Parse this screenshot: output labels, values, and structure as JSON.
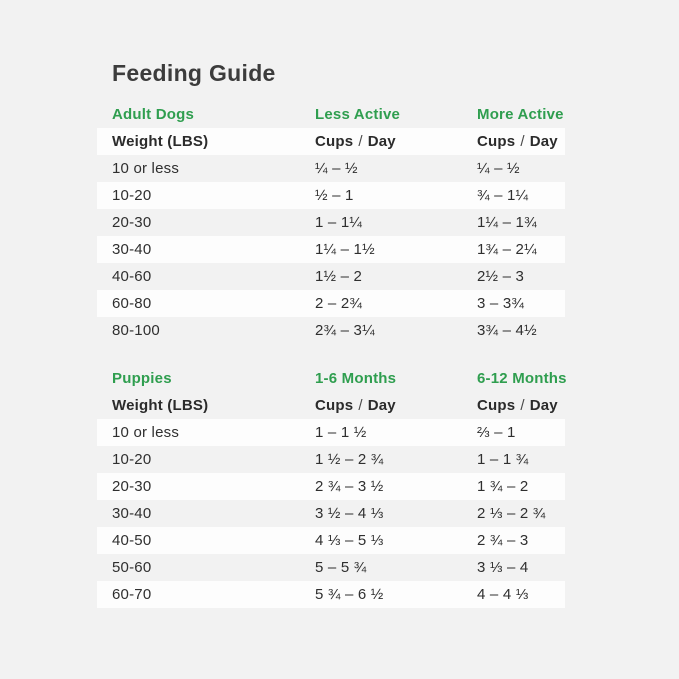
{
  "page": {
    "title": "Feeding Guide"
  },
  "colors": {
    "accent_green": "#2f9e4f",
    "page_bg": "#f2f2f2",
    "row_white": "#fdfdfd",
    "text_dark": "#2f2f2f",
    "title_dark": "#3c3c3c"
  },
  "tables": [
    {
      "section_label": "Adult Dogs",
      "col_labels": [
        "Less Active",
        "More Active"
      ],
      "header": {
        "weight": "Weight (LBS)",
        "cups": "Cups",
        "slash": "/",
        "day": "Day"
      },
      "header_white": true,
      "rows": [
        {
          "weight": "10 or less",
          "cups": [
            "¼ – ½",
            "¼ – ½"
          ],
          "white": false
        },
        {
          "weight": "10-20",
          "cups": [
            "½ – 1",
            "¾ – 1¼"
          ],
          "white": true
        },
        {
          "weight": "20-30",
          "cups": [
            "1 – 1¼",
            "1¼ – 1¾"
          ],
          "white": false
        },
        {
          "weight": "30-40",
          "cups": [
            "1¼ – 1½",
            "1¾ – 2¼"
          ],
          "white": true
        },
        {
          "weight": "40-60",
          "cups": [
            "1½ – 2",
            "2½ – 3"
          ],
          "white": false
        },
        {
          "weight": "60-80",
          "cups": [
            "2 – 2¾",
            "3 – 3¾"
          ],
          "white": true
        },
        {
          "weight": "80-100",
          "cups": [
            "2¾ – 3¼",
            "3¾ – 4½"
          ],
          "white": false
        }
      ]
    },
    {
      "section_label": "Puppies",
      "col_labels": [
        "1-6 Months",
        "6-12 Months"
      ],
      "header": {
        "weight": "Weight (LBS)",
        "cups": "Cups",
        "slash": "/",
        "day": "Day"
      },
      "header_white": false,
      "rows": [
        {
          "weight": "10 or less",
          "cups": [
            "1 – 1 ½",
            "⅔ – 1"
          ],
          "white": true
        },
        {
          "weight": "10-20",
          "cups": [
            "1 ½ – 2 ¾",
            "1 – 1 ¾"
          ],
          "white": false
        },
        {
          "weight": "20-30",
          "cups": [
            "2 ¾ – 3 ½",
            "1 ¾ – 2"
          ],
          "white": true
        },
        {
          "weight": "30-40",
          "cups": [
            "3 ½ – 4 ⅓",
            "2 ⅓ – 2 ¾"
          ],
          "white": false
        },
        {
          "weight": "40-50",
          "cups": [
            "4 ⅓ – 5 ⅓",
            "2 ¾ – 3"
          ],
          "white": true
        },
        {
          "weight": "50-60",
          "cups": [
            "5 – 5 ¾",
            "3 ⅓ – 4"
          ],
          "white": false
        },
        {
          "weight": "60-70",
          "cups": [
            "5 ¾ – 6 ½",
            "4 – 4 ⅓"
          ],
          "white": true
        }
      ]
    }
  ]
}
